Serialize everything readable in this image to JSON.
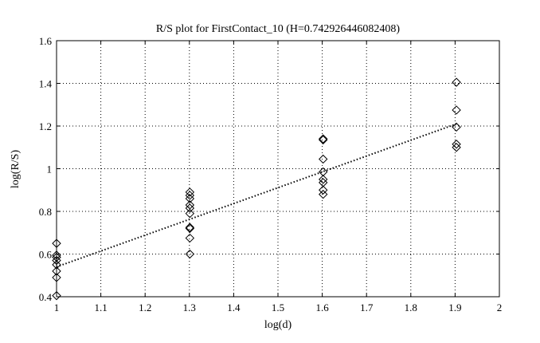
{
  "chart_data": {
    "type": "scatter",
    "title": "R/S plot for FirstContact_10 (H=0.742926446082408)",
    "xlabel": "log(d)",
    "ylabel": "log(R/S)",
    "xlim": [
      1,
      2
    ],
    "ylim": [
      0.4,
      1.6
    ],
    "xticks": [
      1,
      1.1,
      1.2,
      1.3,
      1.4,
      1.5,
      1.6,
      1.7,
      1.8,
      1.9,
      2
    ],
    "yticks": [
      0.4,
      0.6,
      0.8,
      1,
      1.2,
      1.4,
      1.6
    ],
    "xtick_labels": [
      "1",
      "1.1",
      "1.2",
      "1.3",
      "1.4",
      "1.5",
      "1.6",
      "1.7",
      "1.8",
      "1.9",
      "2"
    ],
    "ytick_labels": [
      "0.4",
      "0.6",
      "0.8",
      "1",
      "1.2",
      "1.4",
      "1.6"
    ],
    "grid": true,
    "series": [
      {
        "marker": "diamond",
        "points": [
          [
            1.0,
            0.405
          ],
          [
            1.0,
            0.49
          ],
          [
            1.0,
            0.52
          ],
          [
            1.0,
            0.55
          ],
          [
            1.0,
            0.57
          ],
          [
            1.0,
            0.585
          ],
          [
            1.0,
            0.595
          ],
          [
            1.0,
            0.65
          ],
          [
            1.301,
            0.6
          ],
          [
            1.301,
            0.675
          ],
          [
            1.301,
            0.72
          ],
          [
            1.301,
            0.725
          ],
          [
            1.301,
            0.79
          ],
          [
            1.301,
            0.815
          ],
          [
            1.301,
            0.83
          ],
          [
            1.301,
            0.86
          ],
          [
            1.301,
            0.875
          ],
          [
            1.301,
            0.89
          ],
          [
            1.602,
            0.88
          ],
          [
            1.602,
            0.9
          ],
          [
            1.602,
            0.935
          ],
          [
            1.602,
            0.95
          ],
          [
            1.602,
            0.985
          ],
          [
            1.602,
            1.045
          ],
          [
            1.602,
            1.135
          ],
          [
            1.602,
            1.14
          ],
          [
            1.903,
            1.1
          ],
          [
            1.903,
            1.115
          ],
          [
            1.903,
            1.195
          ],
          [
            1.903,
            1.275
          ],
          [
            1.903,
            1.405
          ]
        ]
      },
      {
        "style": "dotted",
        "line": [
          [
            1.0,
            0.54
          ],
          [
            1.903,
            1.21
          ]
        ]
      }
    ]
  }
}
